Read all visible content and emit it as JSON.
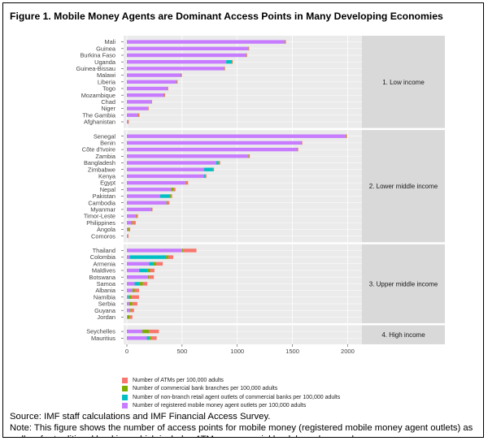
{
  "figure": {
    "title": "Figure 1. Mobile Money Agents are Dominant Access Points in Many Developing Economies",
    "source": "Source: IMF staff calculations and IMF Financial Access Survey.",
    "note": "Note: This figure shows the number of access points for mobile money (registered mobile money agent outlets) as well as for traditional banking, which includes ATMs, commercial bank branches, and"
  },
  "colors": {
    "atm": "#F8766D",
    "branch": "#7CAE00",
    "retail": "#00BFC4",
    "mobile": "#C77CFF",
    "panel_bg": "#EBEBEB",
    "strip_bg": "#D9D9D9"
  },
  "chart_data": {
    "type": "bar",
    "orientation": "horizontal",
    "stacked": true,
    "xlim": [
      0,
      2100
    ],
    "x_ticks": [
      "0",
      "500",
      "1000",
      "1500",
      "2000"
    ],
    "xlabel": "",
    "ylabel": "",
    "legend_position": "bottom",
    "series": [
      {
        "key": "atm",
        "name": "Number of ATMs per 100,000 adults"
      },
      {
        "key": "branch",
        "name": "Number of commercial bank branches per 100,000 adults"
      },
      {
        "key": "retail",
        "name": "Number of non-branch retail agent outlets of commercial banks per 100,000 adults"
      },
      {
        "key": "mobile",
        "name": "Number of registered mobile money agent outlets per 100,000 adults"
      }
    ],
    "facets": [
      {
        "label": "1. Low income",
        "rows": [
          {
            "country": "Mali",
            "mobile": 1430,
            "retail": 0,
            "branch": 5,
            "atm": 5
          },
          {
            "country": "Guinea",
            "mobile": 1100,
            "retail": 0,
            "branch": 2,
            "atm": 2
          },
          {
            "country": "Burkina Faso",
            "mobile": 1080,
            "retail": 0,
            "branch": 3,
            "atm": 4
          },
          {
            "country": "Uganda",
            "mobile": 900,
            "retail": 50,
            "branch": 3,
            "atm": 5
          },
          {
            "country": "Guinea-Bissau",
            "mobile": 880,
            "retail": 0,
            "branch": 3,
            "atm": 3
          },
          {
            "country": "Malawi",
            "mobile": 490,
            "retail": 0,
            "branch": 3,
            "atm": 4
          },
          {
            "country": "Liberia",
            "mobile": 450,
            "retail": 0,
            "branch": 3,
            "atm": 3
          },
          {
            "country": "Togo",
            "mobile": 365,
            "retail": 0,
            "branch": 3,
            "atm": 3
          },
          {
            "country": "Mozambique",
            "mobile": 335,
            "retail": 0,
            "branch": 4,
            "atm": 7
          },
          {
            "country": "Chad",
            "mobile": 220,
            "retail": 0,
            "branch": 1,
            "atm": 2
          },
          {
            "country": "Niger",
            "mobile": 190,
            "retail": 0,
            "branch": 1,
            "atm": 2
          },
          {
            "country": "The Gambia",
            "mobile": 95,
            "retail": 0,
            "branch": 7,
            "atm": 12
          },
          {
            "country": "Afghanistan",
            "mobile": 10,
            "retail": 0,
            "branch": 2,
            "atm": 2
          }
        ]
      },
      {
        "label": "2. Lower middle income",
        "rows": [
          {
            "country": "Senegal",
            "mobile": 1980,
            "retail": 0,
            "branch": 6,
            "atm": 8
          },
          {
            "country": "Benin",
            "mobile": 1580,
            "retail": 0,
            "branch": 3,
            "atm": 6
          },
          {
            "country": "Côte d'Ivoire",
            "mobile": 1540,
            "retail": 0,
            "branch": 5,
            "atm": 7
          },
          {
            "country": "Zambia",
            "mobile": 1100,
            "retail": 0,
            "branch": 4,
            "atm": 10
          },
          {
            "country": "Bangladesh",
            "mobile": 810,
            "retail": 20,
            "branch": 8,
            "atm": 7
          },
          {
            "country": "Zimbabwe",
            "mobile": 700,
            "retail": 80,
            "branch": 4,
            "atm": 5
          },
          {
            "country": "Kenya",
            "mobile": 700,
            "retail": 8,
            "branch": 5,
            "atm": 8
          },
          {
            "country": "Egypt",
            "mobile": 530,
            "retail": 0,
            "branch": 5,
            "atm": 20
          },
          {
            "country": "Nepal",
            "mobile": 400,
            "retail": 0,
            "branch": 20,
            "atm": 20
          },
          {
            "country": "Pakistan",
            "mobile": 300,
            "retail": 90,
            "branch": 10,
            "atm": 10
          },
          {
            "country": "Cambodia",
            "mobile": 360,
            "retail": 0,
            "branch": 10,
            "atm": 15
          },
          {
            "country": "Myanmar",
            "mobile": 220,
            "retail": 0,
            "branch": 5,
            "atm": 7
          },
          {
            "country": "Timor-Leste",
            "mobile": 80,
            "retail": 0,
            "branch": 5,
            "atm": 15
          },
          {
            "country": "Philippines",
            "mobile": 40,
            "retail": 0,
            "branch": 10,
            "atm": 30
          },
          {
            "country": "Angola",
            "mobile": 8,
            "retail": 0,
            "branch": 10,
            "atm": 12
          },
          {
            "country": "Comoros",
            "mobile": 6,
            "retail": 0,
            "branch": 2,
            "atm": 4
          }
        ]
      },
      {
        "label": "3. Upper middle income",
        "rows": [
          {
            "country": "Thailand",
            "mobile": 500,
            "retail": 0,
            "branch": 10,
            "atm": 120
          },
          {
            "country": "Colombia",
            "mobile": 25,
            "retail": 330,
            "branch": 20,
            "atm": 45
          },
          {
            "country": "Armenia",
            "mobile": 200,
            "retail": 40,
            "branch": 25,
            "atm": 60
          },
          {
            "country": "Maldives",
            "mobile": 110,
            "retail": 80,
            "branch": 20,
            "atm": 40
          },
          {
            "country": "Botswana",
            "mobile": 190,
            "retail": 0,
            "branch": 10,
            "atm": 45
          },
          {
            "country": "Samoa",
            "mobile": 70,
            "retail": 45,
            "branch": 30,
            "atm": 40
          },
          {
            "country": "Albania",
            "mobile": 50,
            "retail": 0,
            "branch": 20,
            "atm": 40
          },
          {
            "country": "Namibia",
            "mobile": 10,
            "retail": 10,
            "branch": 20,
            "atm": 70
          },
          {
            "country": "Serbia",
            "mobile": 20,
            "retail": 0,
            "branch": 30,
            "atm": 45
          },
          {
            "country": "Guyana",
            "mobile": 25,
            "retail": 0,
            "branch": 10,
            "atm": 30
          },
          {
            "country": "Jordan",
            "mobile": 5,
            "retail": 0,
            "branch": 20,
            "atm": 25
          }
        ]
      },
      {
        "label": "4. High income",
        "rows": [
          {
            "country": "Seychelles",
            "mobile": 140,
            "retail": 0,
            "branch": 60,
            "atm": 90
          },
          {
            "country": "Mauritius",
            "mobile": 180,
            "retail": 20,
            "branch": 20,
            "atm": 50
          }
        ]
      }
    ]
  }
}
